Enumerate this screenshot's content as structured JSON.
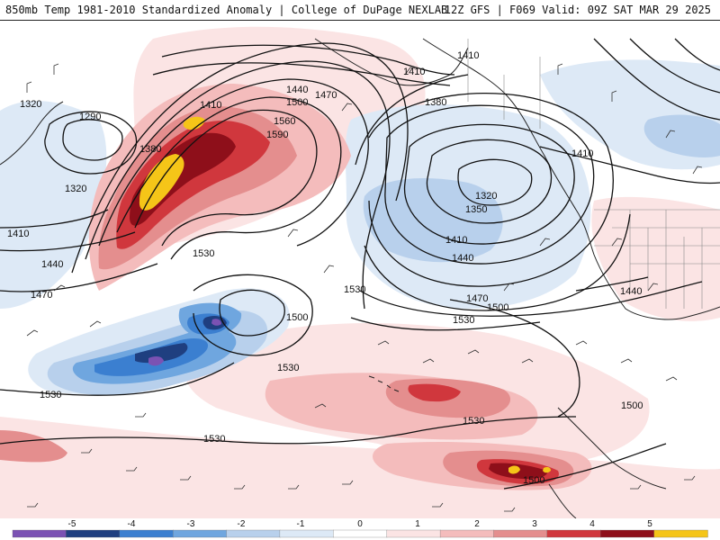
{
  "header": {
    "left_title": "850mb Temp 1981-2010 Standardized Anomaly | College of DuPage NEXLAB",
    "right_title": "12Z GFS | F069 Valid: 09Z SAT MAR 29 2025"
  },
  "colors": {
    "neg5": "#7b52b3",
    "neg4": "#1f3f80",
    "neg3": "#3b7fd0",
    "neg2": "#6fa6df",
    "neg1": "#b8d0ec",
    "neg05": "#dde9f6",
    "zero": "#ffffff",
    "pos05": "#fbe4e4",
    "pos1": "#f4bcbc",
    "pos2": "#e48e8e",
    "pos3": "#d0373d",
    "pos4": "#8e0f1a",
    "pos5": "#f5c518"
  },
  "contour_labels": [
    {
      "id": "c1320a",
      "text": "1320"
    },
    {
      "id": "c1290",
      "text": "1290"
    },
    {
      "id": "c1320b",
      "text": "1320"
    },
    {
      "id": "c1380a",
      "text": "1380"
    },
    {
      "id": "c1410a",
      "text": "1410"
    },
    {
      "id": "c1410b",
      "text": "1410"
    },
    {
      "id": "c1440a",
      "text": "1440"
    },
    {
      "id": "c1470a",
      "text": "1470"
    },
    {
      "id": "c1500a",
      "text": "1500"
    },
    {
      "id": "c1560",
      "text": "1560"
    },
    {
      "id": "c1590",
      "text": "1590"
    },
    {
      "id": "c1440b",
      "text": "1440"
    },
    {
      "id": "c1470b",
      "text": "1470"
    },
    {
      "id": "c1410c",
      "text": "1410"
    },
    {
      "id": "c1410d",
      "text": "1410"
    },
    {
      "id": "c1380b",
      "text": "1380"
    },
    {
      "id": "c1320c",
      "text": "1320"
    },
    {
      "id": "c1350",
      "text": "1350"
    },
    {
      "id": "c1410e",
      "text": "1410"
    },
    {
      "id": "c1440c",
      "text": "1440"
    },
    {
      "id": "c1470c",
      "text": "1470"
    },
    {
      "id": "c1500b",
      "text": "1500"
    },
    {
      "id": "c1530a",
      "text": "1530"
    },
    {
      "id": "c1530b",
      "text": "1530"
    },
    {
      "id": "c1530c",
      "text": "1530"
    },
    {
      "id": "c1500c",
      "text": "1500"
    },
    {
      "id": "c1530d",
      "text": "1530"
    },
    {
      "id": "c1530e",
      "text": "1530"
    },
    {
      "id": "c1530f",
      "text": "1530"
    },
    {
      "id": "c1500d",
      "text": "1500"
    },
    {
      "id": "c1500e",
      "text": "1500"
    },
    {
      "id": "c1410f",
      "text": "1410"
    },
    {
      "id": "c1440d",
      "text": "1440"
    },
    {
      "id": "c1530g",
      "text": "1530"
    }
  ],
  "legend": {
    "ticks": [
      "-5",
      "-4",
      "-3",
      "-2",
      "-1",
      "0",
      "1",
      "2",
      "3",
      "4",
      "5"
    ]
  }
}
